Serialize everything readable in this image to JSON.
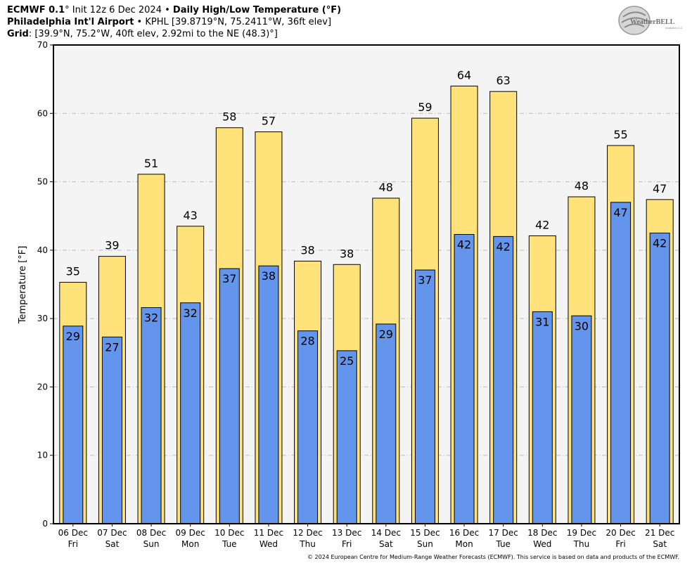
{
  "header": {
    "line1_model": "ECMWF 0.1",
    "line1_deg": "°",
    "line1_init": " Init 12z 6 Dec 2024 • ",
    "line1_product": "Daily High/Low Temperature (°F)",
    "line2_station": "Philadelphia Int'l Airport",
    "line2_details": " • KPHL [39.8719°N, 75.2411°W, 36ft elev]",
    "line3_label": "Grid",
    "line3_details": ": [39.9°N, 75.2°W, 40ft elev, 2.92mi to the NE (48.3)°]"
  },
  "logo": {
    "name": "WeatherBELL",
    "sub": "Analytics LLC"
  },
  "footer": "© 2024 European Centre for Medium-Range Weather Forecasts (ECMWF). This service is based on data and products of the ECMWF.",
  "colors": {
    "high": "#ffe27a",
    "low": "#6495ed",
    "plot_bg": "#f4f4f4",
    "grid": "#bbbbbb"
  },
  "chart_data": {
    "type": "bar",
    "title": "Daily High/Low Temperature (°F)",
    "xlabel": "",
    "ylabel": "Temperature [°F]",
    "ylim": [
      0,
      70
    ],
    "yticks": [
      0,
      10,
      20,
      30,
      40,
      50,
      60,
      70
    ],
    "grid": true,
    "categories": [
      [
        "06 Dec",
        "Fri"
      ],
      [
        "07 Dec",
        "Sat"
      ],
      [
        "08 Dec",
        "Sun"
      ],
      [
        "09 Dec",
        "Mon"
      ],
      [
        "10 Dec",
        "Tue"
      ],
      [
        "11 Dec",
        "Wed"
      ],
      [
        "12 Dec",
        "Thu"
      ],
      [
        "13 Dec",
        "Fri"
      ],
      [
        "14 Dec",
        "Sat"
      ],
      [
        "15 Dec",
        "Sun"
      ],
      [
        "16 Dec",
        "Mon"
      ],
      [
        "17 Dec",
        "Tue"
      ],
      [
        "18 Dec",
        "Wed"
      ],
      [
        "19 Dec",
        "Thu"
      ],
      [
        "20 Dec",
        "Fri"
      ],
      [
        "21 Dec",
        "Sat"
      ]
    ],
    "series": [
      {
        "name": "High",
        "values": [
          35.3,
          39.1,
          51.1,
          43.5,
          57.9,
          57.3,
          38.4,
          37.9,
          47.6,
          59.3,
          64.0,
          63.2,
          42.1,
          47.8,
          55.3,
          47.4
        ],
        "labels": [
          "35",
          "39",
          "51",
          "43",
          "58",
          "57",
          "38",
          "38",
          "48",
          "59",
          "64",
          "63",
          "42",
          "48",
          "55",
          "47"
        ]
      },
      {
        "name": "Low",
        "values": [
          28.9,
          27.3,
          31.6,
          32.3,
          37.3,
          37.7,
          28.2,
          25.3,
          29.2,
          37.1,
          42.3,
          42.0,
          31.0,
          30.4,
          47.0,
          42.5
        ],
        "labels": [
          "29",
          "27",
          "32",
          "32",
          "37",
          "38",
          "28",
          "25",
          "29",
          "37",
          "42",
          "42",
          "31",
          "30",
          "47",
          "42"
        ]
      }
    ]
  }
}
